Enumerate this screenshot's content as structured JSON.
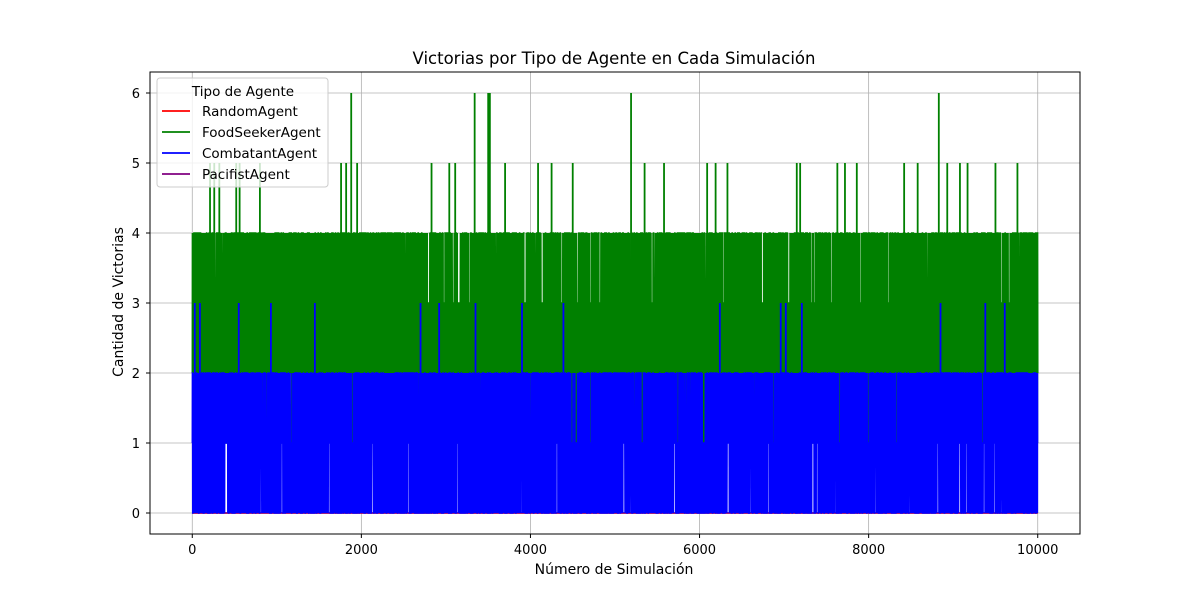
{
  "chart_data": {
    "type": "line",
    "title": "Victorias por Tipo de Agente en Cada Simulación",
    "xlabel": "Número de Simulación",
    "ylabel": "Cantidad de Victorias",
    "xlim": [
      -500,
      10500
    ],
    "ylim": [
      -0.3,
      6.3
    ],
    "x_ticks": [
      0,
      2000,
      4000,
      6000,
      8000,
      10000
    ],
    "y_ticks": [
      0,
      1,
      2,
      3,
      4,
      5,
      6
    ],
    "grid": true,
    "legend": {
      "title": "Tipo de Agente",
      "placement": "top-left"
    },
    "n_simulations": 10000,
    "series": [
      {
        "name": "RandomAgent",
        "color": "#ff0000",
        "baseline": 0,
        "spikes": [
          {
            "x": 6980,
            "y": 4
          }
        ]
      },
      {
        "name": "FoodSeekerAgent",
        "color": "#008000",
        "band": [
          1,
          4
        ],
        "spikes": [
          {
            "x": 90,
            "y": 4
          },
          {
            "x": 210,
            "y": 5
          },
          {
            "x": 260,
            "y": 5
          },
          {
            "x": 320,
            "y": 5
          },
          {
            "x": 520,
            "y": 5
          },
          {
            "x": 560,
            "y": 5
          },
          {
            "x": 800,
            "y": 5
          },
          {
            "x": 1760,
            "y": 5
          },
          {
            "x": 1820,
            "y": 5
          },
          {
            "x": 1880,
            "y": 6
          },
          {
            "x": 1950,
            "y": 5
          },
          {
            "x": 2830,
            "y": 5
          },
          {
            "x": 3040,
            "y": 5
          },
          {
            "x": 3110,
            "y": 5
          },
          {
            "x": 3340,
            "y": 6
          },
          {
            "x": 3500,
            "y": 6
          },
          {
            "x": 3520,
            "y": 6
          },
          {
            "x": 3700,
            "y": 5
          },
          {
            "x": 4090,
            "y": 5
          },
          {
            "x": 4250,
            "y": 5
          },
          {
            "x": 4500,
            "y": 5
          },
          {
            "x": 5190,
            "y": 6
          },
          {
            "x": 5350,
            "y": 5
          },
          {
            "x": 5580,
            "y": 5
          },
          {
            "x": 6090,
            "y": 5
          },
          {
            "x": 6190,
            "y": 5
          },
          {
            "x": 6330,
            "y": 5
          },
          {
            "x": 7150,
            "y": 5
          },
          {
            "x": 7190,
            "y": 5
          },
          {
            "x": 7630,
            "y": 5
          },
          {
            "x": 7720,
            "y": 5
          },
          {
            "x": 7860,
            "y": 5
          },
          {
            "x": 8420,
            "y": 5
          },
          {
            "x": 8580,
            "y": 5
          },
          {
            "x": 8830,
            "y": 6
          },
          {
            "x": 8930,
            "y": 5
          },
          {
            "x": 9080,
            "y": 5
          },
          {
            "x": 9170,
            "y": 5
          },
          {
            "x": 9500,
            "y": 5
          },
          {
            "x": 9760,
            "y": 5
          }
        ]
      },
      {
        "name": "CombatantAgent",
        "color": "#0000ff",
        "band": [
          0,
          2
        ],
        "spikes": [
          {
            "x": 30,
            "y": 3
          },
          {
            "x": 90,
            "y": 3
          },
          {
            "x": 550,
            "y": 3
          },
          {
            "x": 930,
            "y": 3
          },
          {
            "x": 1450,
            "y": 3
          },
          {
            "x": 2700,
            "y": 3
          },
          {
            "x": 2920,
            "y": 3
          },
          {
            "x": 3350,
            "y": 3
          },
          {
            "x": 3900,
            "y": 3
          },
          {
            "x": 4390,
            "y": 3
          },
          {
            "x": 6240,
            "y": 3
          },
          {
            "x": 6960,
            "y": 3
          },
          {
            "x": 7020,
            "y": 3
          },
          {
            "x": 7210,
            "y": 3
          },
          {
            "x": 8850,
            "y": 3
          },
          {
            "x": 9380,
            "y": 3
          },
          {
            "x": 9610,
            "y": 3
          }
        ]
      },
      {
        "name": "PacifistAgent",
        "color": "#800080",
        "baseline": 0,
        "spikes": []
      }
    ]
  }
}
